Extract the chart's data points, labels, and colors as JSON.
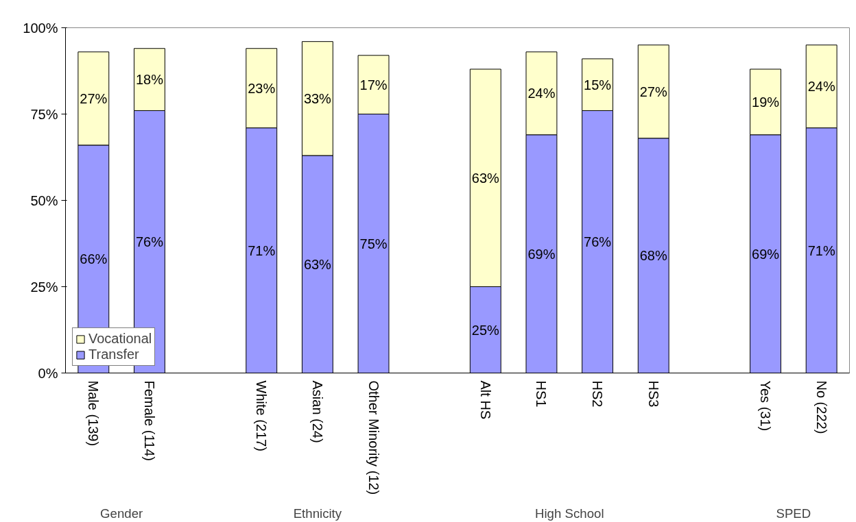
{
  "chart_data": {
    "type": "bar",
    "stacked": true,
    "categories": [
      "Male  (139)",
      "Female  (114)",
      null,
      "White (217)",
      "Asian  (24)",
      "Other Minority  (12)",
      null,
      "Alt HS",
      "HS1",
      "HS2",
      "HS3",
      null,
      "Yes  (31)",
      "No (222)"
    ],
    "series": [
      {
        "name": "Transfer",
        "color": "#9999ff",
        "values": [
          66,
          76,
          null,
          71,
          63,
          75,
          null,
          25,
          69,
          76,
          68,
          null,
          69,
          71
        ],
        "value_labels": [
          "66%",
          "76%",
          null,
          "71%",
          "63%",
          "75%",
          null,
          "25%",
          "69%",
          "76%",
          "68%",
          null,
          "69%",
          "71%"
        ]
      },
      {
        "name": "Vocational",
        "color": "#ffffcc",
        "values": [
          27,
          18,
          null,
          23,
          33,
          17,
          null,
          63,
          24,
          15,
          27,
          null,
          19,
          24
        ],
        "value_labels": [
          "27%",
          "18%",
          null,
          "23%",
          "33%",
          "17%",
          null,
          "63%",
          "24%",
          "15%",
          "27%",
          null,
          "19%",
          "24%"
        ]
      }
    ],
    "ylim": [
      0,
      100
    ],
    "yticks": [
      {
        "value": 0,
        "label": "0%"
      },
      {
        "value": 25,
        "label": "25%"
      },
      {
        "value": 50,
        "label": "50%"
      },
      {
        "value": 75,
        "label": "75%"
      },
      {
        "value": 100,
        "label": "100%"
      }
    ],
    "annotations": [
      "Gender",
      "Ethnicity",
      "High School",
      "SPED"
    ],
    "legend": "bottom left",
    "grid": false
  }
}
